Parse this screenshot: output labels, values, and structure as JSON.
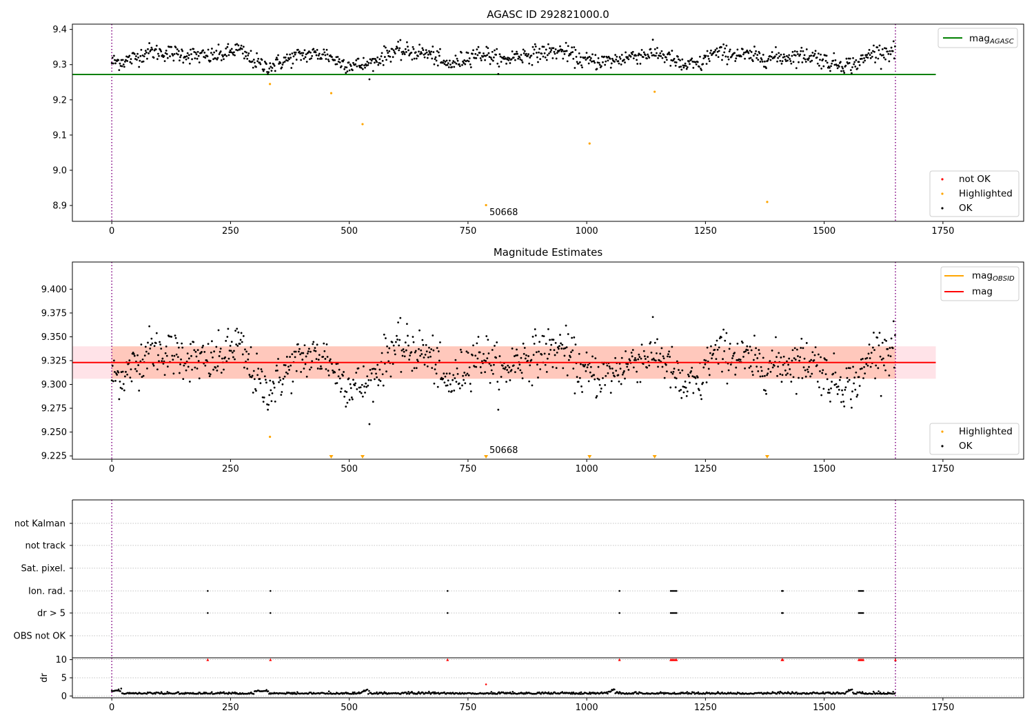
{
  "chart_data": [
    {
      "type": "scatter",
      "title": "AGASC ID 292821000.0",
      "xlabel": "",
      "ylabel": "",
      "xlim": [
        -83,
        1920
      ],
      "ylim": [
        8.855,
        9.415
      ],
      "xticks": [
        0,
        250,
        500,
        750,
        1000,
        1250,
        1500,
        1750
      ],
      "xtick_labels": [
        "0",
        "250",
        "500",
        "750",
        "1000",
        "1250",
        "1500",
        "1750"
      ],
      "yticks": [
        8.9,
        9.0,
        9.1,
        9.2,
        9.3,
        9.4
      ],
      "ytick_labels": [
        "8.9",
        "9.0",
        "9.1",
        "9.2",
        "9.3",
        "9.4"
      ],
      "vlines": [
        0,
        1650
      ],
      "hlines": [
        {
          "name": "mag_AGASC",
          "y": 9.272,
          "x": [
            -83,
            1735
          ],
          "color": "#008000"
        }
      ],
      "ok_series": {
        "name": "OK",
        "x_range": [
          0,
          1650
        ],
        "baseline": 9.31,
        "color": "#000000"
      },
      "highlighted": {
        "name": "Highlighted",
        "color": "#ffa500",
        "points": [
          {
            "x": 333,
            "y": 9.245
          },
          {
            "x": 462,
            "y": 9.219
          },
          {
            "x": 528,
            "y": 9.131
          },
          {
            "x": 788,
            "y": 8.901
          },
          {
            "x": 1006,
            "y": 9.076
          },
          {
            "x": 1143,
            "y": 9.223
          },
          {
            "x": 1380,
            "y": 8.91
          }
        ]
      },
      "annotation": {
        "text": "50668",
        "x": 793,
        "y": 8.885
      },
      "legend_top": [
        {
          "label": "mag",
          "sub": "AGASC",
          "color": "#008000",
          "kind": "line"
        }
      ],
      "legend_bottom": [
        {
          "label": "not OK",
          "color": "#ff0000",
          "kind": "dot"
        },
        {
          "label": "Highlighted",
          "color": "#ffa500",
          "kind": "dot"
        },
        {
          "label": "OK",
          "color": "#000000",
          "kind": "dot"
        }
      ]
    },
    {
      "type": "scatter",
      "title": "Magnitude Estimates",
      "xlabel": "",
      "ylabel": "",
      "xlim": [
        -83,
        1920
      ],
      "ylim": [
        9.2215,
        9.4285
      ],
      "xticks": [
        0,
        250,
        500,
        750,
        1000,
        1250,
        1500,
        1750
      ],
      "xtick_labels": [
        "0",
        "250",
        "500",
        "750",
        "1000",
        "1250",
        "1500",
        "1750"
      ],
      "yticks": [
        9.225,
        9.25,
        9.275,
        9.3,
        9.325,
        9.35,
        9.375,
        9.4
      ],
      "ytick_labels": [
        "9.225",
        "9.250",
        "9.275",
        "9.300",
        "9.325",
        "9.350",
        "9.375",
        "9.400"
      ],
      "vlines": [
        0,
        1650
      ],
      "mag": {
        "name": "mag",
        "y": 9.323,
        "x": [
          -83,
          1735
        ],
        "color": "#ff0000"
      },
      "bands": [
        {
          "y": [
            9.306,
            9.34
          ],
          "x": [
            -83,
            1735
          ],
          "color": "#ffc0cb",
          "opacity": 0.45
        },
        {
          "y": [
            9.306,
            9.34
          ],
          "x": [
            0,
            1650
          ],
          "color": "#ffa07a",
          "opacity": 0.4
        }
      ],
      "ok_series": {
        "name": "OK",
        "x_range": [
          0,
          1650
        ],
        "baseline": 9.31,
        "color": "#000000"
      },
      "highlighted": {
        "name": "Highlighted",
        "color": "#ffa500",
        "points": [
          {
            "x": 333,
            "y": 9.245
          }
        ],
        "offscale_markers_x": [
          462,
          528,
          788,
          1006,
          1143,
          1380
        ]
      },
      "annotation": {
        "text": "50668",
        "x": 793,
        "y": 9.228
      },
      "legend_top": [
        {
          "label": "mag",
          "sub": "OBSID",
          "color": "#ffa500",
          "kind": "line"
        },
        {
          "label": "mag",
          "sub": "",
          "color": "#ff0000",
          "kind": "line"
        }
      ],
      "legend_bottom": [
        {
          "label": "Highlighted",
          "color": "#ffa500",
          "kind": "dot"
        },
        {
          "label": "OK",
          "color": "#000000",
          "kind": "dot"
        }
      ]
    },
    {
      "type": "scatter",
      "title": "",
      "xlabel": "",
      "ylabel": "",
      "xlim": [
        -83,
        1920
      ],
      "categories": [
        "not Kalman",
        "not track",
        "Sat. pixel.",
        "Ion. rad.",
        "dr > 5",
        "OBS not OK"
      ],
      "flag_points": {
        "Ion. rad.": [
          202,
          334,
          707,
          1069,
          1177,
          1180,
          1183,
          1186,
          1189,
          1411,
          1413,
          1573,
          1576,
          1579,
          1582
        ],
        "dr > 5": [
          202,
          334,
          707,
          1069,
          1177,
          1180,
          1183,
          1186,
          1189,
          1411,
          1413,
          1573,
          1576,
          1579,
          1582
        ]
      },
      "vlines": [
        0,
        1650
      ]
    },
    {
      "type": "scatter",
      "title": "",
      "xlabel": "",
      "ylabel": "dr",
      "xlim": [
        -83,
        1920
      ],
      "ylim": [
        -0.5,
        10.5
      ],
      "xticks": [
        0,
        250,
        500,
        750,
        1000,
        1250,
        1500,
        1750
      ],
      "xtick_labels": [
        "0",
        "250",
        "500",
        "750",
        "1000",
        "1250",
        "1500",
        "1750"
      ],
      "yticks": [
        0,
        5,
        10
      ],
      "ytick_labels": [
        "0",
        "5",
        "10"
      ],
      "vlines": [
        0,
        1650
      ],
      "dr_series": {
        "name": "dr",
        "x_range": [
          0,
          1650
        ],
        "color": "#000000"
      },
      "clipped_points_x": [
        202,
        334,
        707,
        1069,
        1177,
        1180,
        1183,
        1186,
        1189,
        1411,
        1413,
        1573,
        1576,
        1579,
        1582,
        1650
      ],
      "outlier": {
        "x": 788,
        "y": 3.2
      }
    }
  ]
}
